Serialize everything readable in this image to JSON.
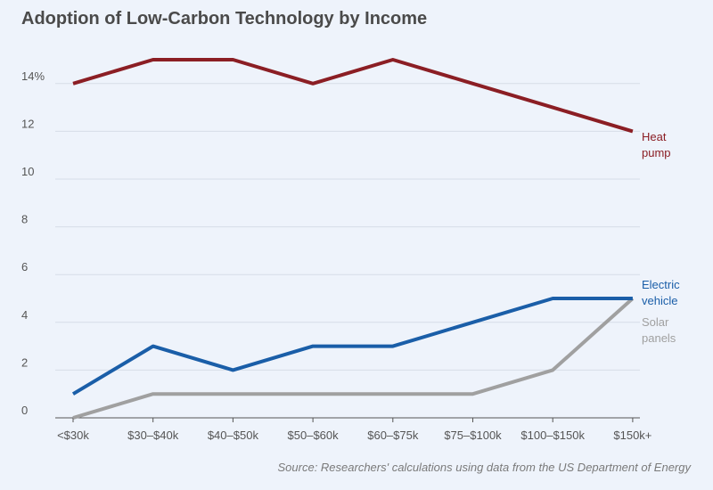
{
  "title": "Adoption of Low-Carbon Technology by Income",
  "source": "Source: Researchers' calculations using data from the US Department of Energy",
  "chart_data": {
    "type": "line",
    "title": "Adoption of Low-Carbon Technology by Income",
    "xlabel": "",
    "ylabel": "",
    "categories": [
      "<$30k",
      "$30–$40k",
      "$40–$50k",
      "$50–$60k",
      "$60–$75k",
      "$75–$100k",
      "$100–$150k",
      "$150k+"
    ],
    "ylim": [
      0,
      16
    ],
    "yticks": [
      0,
      2,
      4,
      6,
      8,
      10,
      12,
      14
    ],
    "ytick_labels": [
      "0",
      "2",
      "4",
      "6",
      "8",
      "10",
      "12",
      "14%"
    ],
    "grid": true,
    "legend": "direct labels at right end of lines",
    "series": [
      {
        "name": "Heat pump",
        "label_lines": [
          "Heat",
          "pump"
        ],
        "color": "#8b1e24",
        "values": [
          14,
          15,
          15,
          14,
          15,
          14,
          13,
          12
        ]
      },
      {
        "name": "Electric vehicle",
        "label_lines": [
          "Electric",
          "vehicle"
        ],
        "color": "#1a5ea8",
        "values": [
          1,
          3,
          2,
          3,
          3,
          4,
          5,
          5
        ]
      },
      {
        "name": "Solar panels",
        "label_lines": [
          "Solar",
          "panels"
        ],
        "color": "#a0a0a0",
        "values": [
          0,
          1,
          1,
          1,
          1,
          1,
          2,
          5
        ]
      }
    ]
  }
}
